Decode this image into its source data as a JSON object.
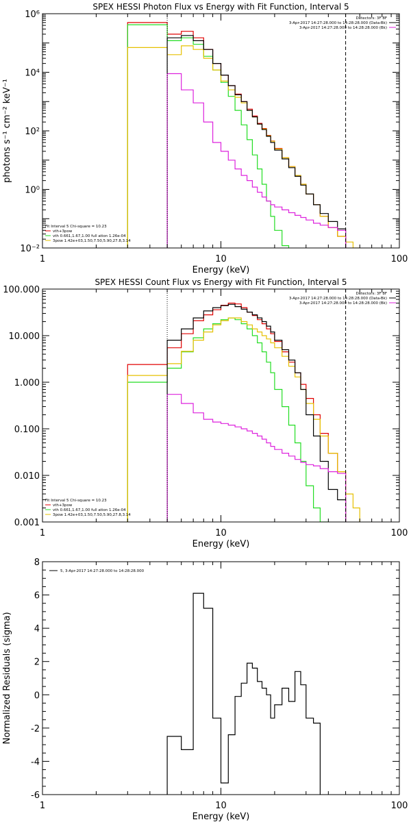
{
  "colors": {
    "total": "#e00000",
    "thermal": "#22dd22",
    "power": "#e6c000",
    "background": "#dd22dd",
    "data": "#000000"
  },
  "chart_data": [
    {
      "type": "line",
      "title": "SPEX HESSI Photon Flux vs Energy with Fit Function, Interval 5",
      "xlabel": "Energy (keV)",
      "ylabel": "photons s⁻¹ cm⁻² keV⁻¹",
      "xscale": "log",
      "yscale": "log",
      "xlim": [
        1,
        100
      ],
      "ylim": [
        0.01,
        1000000
      ],
      "xticks": [
        {
          "v": 1,
          "label": "1"
        },
        {
          "v": 10,
          "label": "10"
        },
        {
          "v": 100,
          "label": "100"
        }
      ],
      "yticks": [
        {
          "v": 0.01,
          "label": "10⁻²"
        },
        {
          "v": 1,
          "label": "10⁰"
        },
        {
          "v": 100,
          "label": "10²"
        },
        {
          "v": 10000,
          "label": "10⁴"
        },
        {
          "v": 1000000,
          "label": "10⁶"
        }
      ],
      "vlines": [
        {
          "x": 5,
          "style": "dotted"
        },
        {
          "x": 50,
          "style": "dashed"
        }
      ],
      "legend_top": [
        "Detectors: 3F 8F",
        "3-Apr-2017 14:27:28.000 to 14:28:28.000 (Data-Bk)",
        "3-Apr-2017 14:27:28.000 to 14:28:28.000 (Bk)"
      ],
      "legend_bottom": [
        "Fit Interval 5   Chi-square = 10.23",
        "vth+3pow",
        "vth 0.661,1.67,1.00  full ation 1.26e-04",
        "3pow 1.42e+03,1.50,7.50,5.90,27.8,3.14"
      ],
      "x_edges": [
        3,
        4,
        5,
        6,
        7,
        8,
        9,
        10,
        11,
        12,
        13,
        14,
        15,
        16,
        17,
        18,
        19,
        20,
        22,
        24,
        26,
        28,
        30,
        33,
        36,
        40,
        45,
        50,
        55,
        60
      ],
      "series": [
        {
          "name": "vth+3pow",
          "color": "#e00000",
          "start": 3,
          "values": [
            500000,
            500000,
            200000,
            250000,
            150000,
            60000,
            20000,
            8000,
            3500,
            1800,
            1000,
            550,
            320,
            180,
            120,
            70,
            45,
            25,
            12,
            6,
            3,
            1.5,
            0.7,
            0.3,
            0.12,
            0.05,
            0.025
          ]
        },
        {
          "name": "vth",
          "color": "#22dd22",
          "start": 3,
          "values": [
            420000,
            420000,
            120000,
            150000,
            90000,
            35000,
            12000,
            4500,
            1500,
            500,
            160,
            50,
            15,
            5,
            1.5,
            0.4,
            0.12,
            0.04,
            0.012
          ]
        },
        {
          "name": "3pow",
          "color": "#e6c000",
          "start": 3,
          "values": [
            70000,
            70000,
            40000,
            80000,
            60000,
            30000,
            12000,
            5000,
            2500,
            1400,
            900,
            500,
            300,
            170,
            115,
            68,
            44,
            24,
            12,
            6,
            3,
            1.5,
            0.7,
            0.3,
            0.12,
            0.05,
            0.025,
            0.016,
            0.01
          ]
        },
        {
          "name": "Data-Bk",
          "color": "#000000",
          "start": 5,
          "values": [
            150000,
            180000,
            120000,
            60000,
            20000,
            8000,
            3500,
            1700,
            1000,
            500,
            300,
            170,
            110,
            65,
            40,
            22,
            11,
            5.5,
            2.8,
            1.4,
            0.7,
            0.3,
            0.15,
            0.08,
            0.045
          ]
        },
        {
          "name": "Bk",
          "color": "#dd22dd",
          "start": 5,
          "values": [
            9000,
            2500,
            900,
            200,
            40,
            20,
            10,
            5,
            3,
            2,
            1.2,
            0.8,
            0.55,
            0.4,
            0.3,
            0.25,
            0.2,
            0.16,
            0.13,
            0.11,
            0.09,
            0.07,
            0.06,
            0.05,
            0.04
          ]
        }
      ]
    },
    {
      "type": "line",
      "title": "SPEX HESSI Count Flux vs Energy with Fit Function, Interval 5",
      "xlabel": "Energy (keV)",
      "ylabel": "",
      "xscale": "log",
      "yscale": "log",
      "xlim": [
        1,
        100
      ],
      "ylim": [
        0.001,
        100
      ],
      "xticks": [
        {
          "v": 1,
          "label": "1"
        },
        {
          "v": 10,
          "label": "10"
        },
        {
          "v": 100,
          "label": "100"
        }
      ],
      "yticks": [
        {
          "v": 0.001,
          "label": "0.001"
        },
        {
          "v": 0.01,
          "label": "0.010"
        },
        {
          "v": 0.1,
          "label": "0.100"
        },
        {
          "v": 1,
          "label": "1.000"
        },
        {
          "v": 10,
          "label": "10.000"
        },
        {
          "v": 100,
          "label": "100.000"
        }
      ],
      "vlines": [
        {
          "x": 5,
          "style": "dotted"
        },
        {
          "x": 50,
          "style": "dashed"
        }
      ],
      "legend_top": [
        "Detectors: 3F 8F",
        "3-Apr-2017 14:27:28.000 to 14:28:28.000 (Data-Bk)",
        "3-Apr-2017 14:27:28.000 to 14:28:28.000 (Bk)"
      ],
      "legend_bottom": [
        "Fit Interval 5   Chi-square = 10.23",
        "vth+3pow",
        "vth 0.661,1.67,1.00  full ation 1.26e-04",
        "3pow 1.42e+03,1.50,7.50,5.90,27.8,3.14"
      ],
      "x_edges": [
        3,
        4,
        5,
        6,
        7,
        8,
        9,
        10,
        11,
        12,
        13,
        14,
        15,
        16,
        17,
        18,
        19,
        20,
        22,
        24,
        26,
        28,
        30,
        33,
        36,
        40,
        45,
        50,
        55,
        60
      ],
      "series": [
        {
          "name": "vth+3pow",
          "color": "#e00000",
          "start": 3,
          "values": [
            2.4,
            2.4,
            5.5,
            11,
            21,
            28,
            36,
            45,
            50,
            48,
            40,
            32,
            27,
            22,
            18,
            14,
            11,
            7.5,
            4.5,
            2.7,
            1.6,
            0.9,
            0.45,
            0.2,
            0.08,
            0.03,
            0.012
          ]
        },
        {
          "name": "vth",
          "color": "#22dd22",
          "start": 3,
          "values": [
            1.0,
            1.0,
            2.0,
            4.5,
            9,
            14,
            18,
            22,
            24,
            22,
            18,
            14,
            10,
            7,
            4.5,
            2.7,
            1.6,
            0.7,
            0.3,
            0.12,
            0.05,
            0.02,
            0.006,
            0.002,
            0.001
          ]
        },
        {
          "name": "3pow",
          "color": "#e6c000",
          "start": 3,
          "values": [
            1.4,
            1.4,
            2.5,
            4.6,
            8,
            12,
            17,
            21,
            24,
            24,
            20,
            17,
            14,
            12,
            10,
            8.5,
            7,
            5.5,
            3.6,
            2.2,
            1.3,
            0.7,
            0.35,
            0.16,
            0.07,
            0.03,
            0.012,
            0.004,
            0.002
          ]
        },
        {
          "name": "Data-Bk",
          "color": "#000000",
          "start": 5,
          "values": [
            8,
            14,
            24,
            34,
            40,
            44,
            47,
            42,
            37,
            32,
            28,
            24,
            20,
            16,
            12,
            8,
            5,
            3,
            1.6,
            0.7,
            0.2,
            0.07,
            0.02,
            0.005,
            0.003
          ]
        },
        {
          "name": "Bk",
          "color": "#dd22dd",
          "start": 5,
          "values": [
            0.55,
            0.35,
            0.22,
            0.16,
            0.14,
            0.13,
            0.12,
            0.11,
            0.1,
            0.09,
            0.08,
            0.07,
            0.06,
            0.05,
            0.042,
            0.036,
            0.03,
            0.026,
            0.022,
            0.019,
            0.017,
            0.016,
            0.014,
            0.012,
            0.011
          ]
        }
      ]
    },
    {
      "type": "line",
      "title": "",
      "xlabel": "Energy (keV)",
      "ylabel": "Normalized Residuals (sigma)",
      "xscale": "log",
      "yscale": "linear",
      "xlim": [
        1,
        100
      ],
      "ylim": [
        -6,
        8
      ],
      "xticks": [
        {
          "v": 1,
          "label": "1"
        },
        {
          "v": 10,
          "label": "10"
        },
        {
          "v": 100,
          "label": "100"
        }
      ],
      "yticks": [
        {
          "v": -6,
          "label": "-6"
        },
        {
          "v": -4,
          "label": "-4"
        },
        {
          "v": -2,
          "label": "-2"
        },
        {
          "v": 0,
          "label": "0"
        },
        {
          "v": 2,
          "label": "2"
        },
        {
          "v": 4,
          "label": "4"
        },
        {
          "v": 6,
          "label": "6"
        },
        {
          "v": 8,
          "label": "8"
        }
      ],
      "legend_top": [
        "5, 3-Apr-2017 14:27:28.000 to 14:28:28.000"
      ],
      "x_edges": [
        5,
        6,
        7,
        8,
        9,
        10,
        11,
        12,
        13,
        14,
        15,
        16,
        17,
        18,
        19,
        20,
        22,
        24,
        26,
        28,
        30,
        33,
        36,
        40,
        45,
        50
      ],
      "series": [
        {
          "name": "5, 3-Apr-2017 14:27:28.000 to 14:28:28.000",
          "color": "#000000",
          "start": 5,
          "values": [
            -2.5,
            -3.3,
            6.1,
            5.2,
            -1.4,
            -5.3,
            -2.4,
            -0.1,
            0.7,
            1.9,
            1.6,
            0.8,
            0.4,
            0.0,
            -1.4,
            -0.6,
            0.4,
            -0.4,
            1.4,
            0.6,
            -1.4,
            -1.7
          ]
        }
      ]
    }
  ]
}
